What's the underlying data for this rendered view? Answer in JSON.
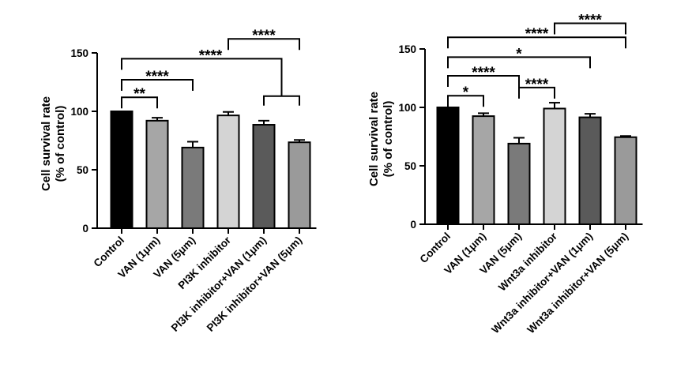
{
  "chart_data": [
    {
      "type": "bar",
      "title": "",
      "xlabel": "",
      "ylabel": [
        "Cell survival rate",
        "(% of control)"
      ],
      "ylim": [
        0,
        150
      ],
      "yticks": [
        0,
        50,
        100,
        150
      ],
      "categories": [
        "Control",
        "VAN (1μm)",
        "VAN (5μm)",
        "PI3K inhibitor",
        "PI3K inhibitor+VAN (1μm)",
        "PI3K inhibitor+VAN (5μm)"
      ],
      "values": [
        100,
        92,
        69,
        96.5,
        88.5,
        73.5
      ],
      "errors": [
        0,
        2.5,
        5,
        3,
        3.5,
        2
      ],
      "colors": [
        "#000000",
        "#a6a6a6",
        "#7a7a7a",
        "#d4d4d4",
        "#5a5a5a",
        "#9a9a9a"
      ],
      "significance": [
        {
          "from": 0,
          "to": 1,
          "label": "**",
          "level": 112
        },
        {
          "from": 0,
          "to": 2,
          "label": "****",
          "level": 127
        },
        {
          "from": 0,
          "to": 5,
          "label": "****",
          "level": 145,
          "to_span": [
            4,
            5
          ],
          "span_level": 113
        },
        {
          "from": 3,
          "to": 5,
          "label": "****",
          "level": 162
        }
      ]
    },
    {
      "type": "bar",
      "title": "",
      "xlabel": "",
      "ylabel": [
        "Cell survival rate",
        "(% of control)"
      ],
      "ylim": [
        0,
        150
      ],
      "yticks": [
        0,
        50,
        100,
        150
      ],
      "categories": [
        "Control",
        "VAN (1μm)",
        "VAN (5μm)",
        "Wnt3a inhibitor",
        "Wnt3a inhibitor+VAN (1μm)",
        "Wnt3a inhibitor+VAN (5μm)"
      ],
      "values": [
        100,
        92.5,
        69,
        99,
        91.5,
        74.5
      ],
      "errors": [
        0,
        2.5,
        5,
        5,
        3,
        1
      ],
      "colors": [
        "#000000",
        "#a6a6a6",
        "#7a7a7a",
        "#d4d4d4",
        "#5a5a5a",
        "#9a9a9a"
      ],
      "significance": [
        {
          "from": 0,
          "to": 1,
          "label": "*",
          "level": 110
        },
        {
          "from": 0,
          "to": 2,
          "label": "****",
          "level": 127
        },
        {
          "from": 2,
          "to": 3,
          "label": "****",
          "level": 117
        },
        {
          "from": 0,
          "to": 4,
          "label": "*",
          "level": 143
        },
        {
          "from": 0,
          "to": 5,
          "label": "****",
          "level": 160
        },
        {
          "from": 3,
          "to": 5,
          "label": "****",
          "level": 172
        }
      ]
    }
  ]
}
